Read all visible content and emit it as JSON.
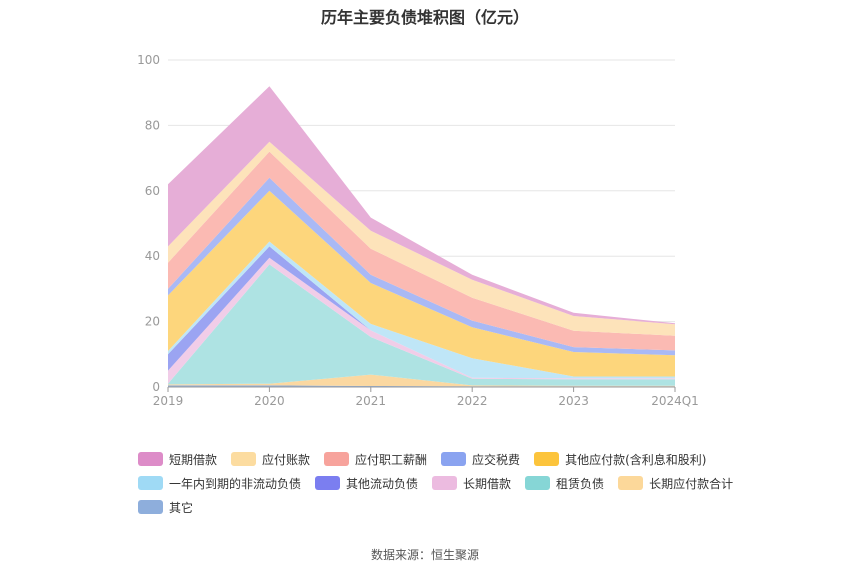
{
  "chart_data": {
    "type": "area",
    "title": "历年主要负债堆积图（亿元）",
    "categories": [
      "2019",
      "2020",
      "2021",
      "2022",
      "2023",
      "2024Q1"
    ],
    "yticks": [
      "0",
      "20",
      "40",
      "60",
      "80",
      "100"
    ],
    "ylim": [
      0,
      100
    ],
    "grid": true,
    "legend_position": "bottom",
    "series": [
      {
        "name": "其它",
        "color": "#8eaedc",
        "values": [
          0.5,
          0.5,
          0.3,
          0.2,
          0.2,
          0.2
        ]
      },
      {
        "name": "长期应付款合计",
        "color": "#fbd8a1",
        "values": [
          0.3,
          0.5,
          3.5,
          0.3,
          0.2,
          0.2
        ]
      },
      {
        "name": "租赁负债",
        "color": "#aee3e3",
        "values": [
          0.2,
          36.5,
          11.5,
          2.0,
          2.0,
          2.0
        ]
      },
      {
        "name": "长期借款",
        "color": "#f1cde8",
        "values": [
          4.0,
          2.0,
          2.0,
          0.3,
          0.3,
          0.3
        ]
      },
      {
        "name": "其他流动负债",
        "color": "#9ba4f2",
        "values": [
          5.0,
          3.5,
          0.0,
          0.0,
          0.0,
          0.0
        ]
      },
      {
        "name": "一年内到期的非流动负债",
        "color": "#bfe6f7",
        "values": [
          1.0,
          1.5,
          2.0,
          6.0,
          0.5,
          0.5
        ]
      },
      {
        "name": "其他应付款(含利息和股利)",
        "color": "#fdd67c",
        "values": [
          17.0,
          15.5,
          12.5,
          9.5,
          7.5,
          6.5
        ]
      },
      {
        "name": "应交税费",
        "color": "#a9b9f5",
        "values": [
          2.0,
          4.0,
          2.5,
          2.0,
          1.5,
          1.5
        ]
      },
      {
        "name": "应付职工薪酬",
        "color": "#fbbab3",
        "values": [
          8.0,
          8.0,
          8.0,
          7.0,
          5.0,
          4.5
        ]
      },
      {
        "name": "应付账款",
        "color": "#fde3ba",
        "values": [
          5.0,
          3.0,
          5.5,
          5.5,
          4.5,
          3.5
        ]
      },
      {
        "name": "短期借款",
        "color": "#e6aed7",
        "values": [
          19.0,
          17.0,
          4.0,
          1.5,
          1.0,
          0.3
        ]
      }
    ],
    "legend": [
      {
        "name": "短期借款",
        "color": "#dd8cc8"
      },
      {
        "name": "应付账款",
        "color": "#fcdca0"
      },
      {
        "name": "应付职工薪酬",
        "color": "#f7a39c"
      },
      {
        "name": "应交税费",
        "color": "#8aa3f0"
      },
      {
        "name": "其他应付款(含利息和股利)",
        "color": "#fcc43c"
      },
      {
        "name": "一年内到期的非流动负债",
        "color": "#9fdaf5"
      },
      {
        "name": "其他流动负债",
        "color": "#7b7ef0"
      },
      {
        "name": "长期借款",
        "color": "#ecbbe0"
      },
      {
        "name": "租赁负债",
        "color": "#86d6d6"
      },
      {
        "name": "长期应付款合计",
        "color": "#fcd89a"
      },
      {
        "name": "其它",
        "color": "#8eaedc"
      }
    ]
  },
  "source_text": "数据来源：恒生聚源"
}
